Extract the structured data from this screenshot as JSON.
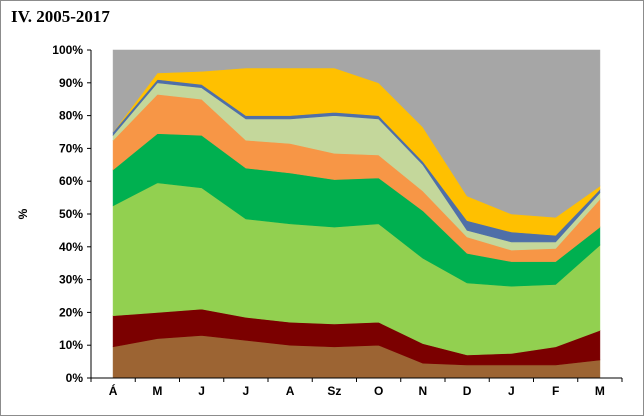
{
  "chart_data": {
    "type": "area",
    "stacked": true,
    "title": "IV. 2005-2017",
    "xlabel": "",
    "ylabel": "%",
    "ylim": [
      0,
      100
    ],
    "yticks": [
      "0%",
      "10%",
      "20%",
      "30%",
      "40%",
      "50%",
      "60%",
      "70%",
      "80%",
      "90%",
      "100%"
    ],
    "categories": [
      "Á",
      "M",
      "J",
      "J",
      "A",
      "Sz",
      "O",
      "N",
      "D",
      "J",
      "F",
      "M"
    ],
    "grid": false,
    "legend": "none",
    "series": [
      {
        "color": "#9c6433",
        "values": [
          9.5,
          12,
          13,
          11.5,
          10,
          9.5,
          10,
          4.5,
          4,
          4,
          4,
          5.5
        ]
      },
      {
        "color": "#7b0000",
        "values": [
          9.5,
          8,
          8,
          7,
          7,
          7,
          7,
          6,
          3,
          3.5,
          5.5,
          9
        ]
      },
      {
        "color": "#92d050",
        "values": [
          33.5,
          39.5,
          37,
          30,
          30,
          29.5,
          30,
          26,
          22,
          20.5,
          19,
          26
        ]
      },
      {
        "color": "#00b050",
        "values": [
          11,
          15,
          16,
          15.5,
          15.5,
          14.5,
          14,
          14.5,
          9,
          7.5,
          7,
          5.5
        ]
      },
      {
        "color": "#f79646",
        "values": [
          9,
          12,
          11,
          8.5,
          9,
          8,
          7,
          6,
          5,
          3.5,
          4,
          8.5
        ]
      },
      {
        "color": "#c4d79b",
        "values": [
          1.5,
          3.5,
          3.5,
          6.5,
          7.5,
          11.5,
          11,
          8,
          2,
          2.5,
          2,
          2
        ]
      },
      {
        "color": "#4f6fa8",
        "values": [
          1,
          1,
          1,
          1,
          1,
          1,
          1,
          1,
          3,
          3,
          2,
          1
        ]
      },
      {
        "color": "#ffc000",
        "values": [
          0,
          2,
          4,
          14.5,
          14.5,
          13.5,
          10,
          10.5,
          7.5,
          5.5,
          5.5,
          1
        ]
      },
      {
        "color": "#a6a6a6",
        "values": [
          25,
          7,
          6.5,
          5.5,
          5.5,
          5.5,
          10,
          23.5,
          44.5,
          50,
          51,
          41.5
        ]
      }
    ]
  }
}
